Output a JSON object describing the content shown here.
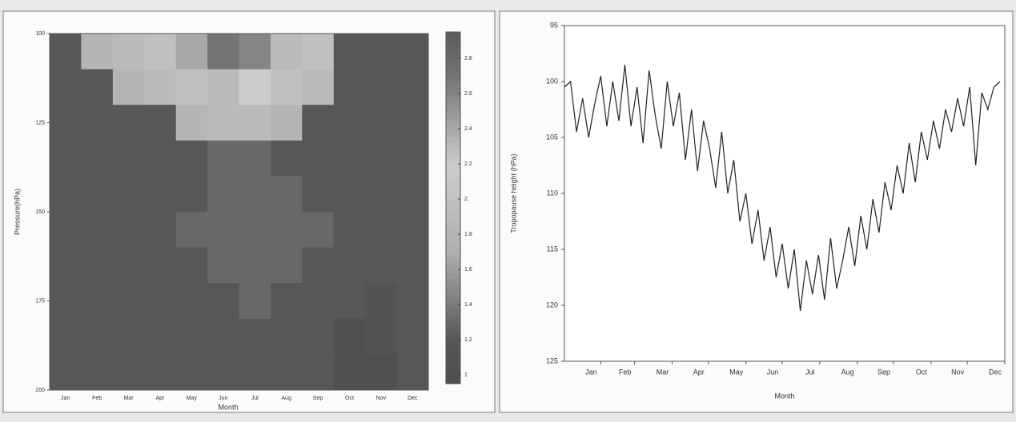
{
  "chart_data": [
    {
      "type": "heatmap",
      "categories": [
        "Jan",
        "Feb",
        "Mar",
        "Apr",
        "May",
        "Jun",
        "Jul",
        "Aug",
        "Sep",
        "Oct",
        "Nov",
        "Dec"
      ],
      "x_label": "Month",
      "y_label": "Pressure(hPa)",
      "ybins": [
        100,
        110,
        120,
        130,
        140,
        150,
        160,
        170,
        180,
        190,
        200
      ],
      "ylim": [
        200,
        100
      ],
      "yticks": [
        100,
        125,
        150,
        175,
        200
      ],
      "z": [
        [
          1.2,
          1.8,
          1.9,
          2.0,
          2.4,
          2.7,
          2.6,
          2.3,
          2.0,
          1.2,
          1.2,
          1.2
        ],
        [
          1.2,
          1.2,
          1.8,
          1.9,
          2.0,
          2.3,
          2.2,
          2.0,
          1.9,
          1.2,
          1.2,
          1.2
        ],
        [
          1.2,
          1.2,
          1.2,
          1.2,
          1.8,
          1.9,
          1.9,
          1.8,
          1.2,
          1.2,
          1.2,
          1.2
        ],
        [
          1.2,
          1.2,
          1.2,
          1.2,
          1.2,
          1.3,
          1.3,
          1.2,
          1.2,
          1.2,
          1.2,
          1.2
        ],
        [
          1.2,
          1.2,
          1.2,
          1.2,
          1.2,
          1.3,
          1.3,
          1.3,
          1.2,
          1.2,
          1.2,
          1.2
        ],
        [
          1.2,
          1.2,
          1.2,
          1.2,
          1.3,
          1.3,
          1.3,
          1.3,
          1.3,
          1.2,
          1.2,
          1.2
        ],
        [
          1.2,
          1.2,
          1.2,
          1.2,
          1.2,
          1.3,
          1.3,
          1.3,
          1.2,
          1.2,
          1.2,
          1.2
        ],
        [
          1.2,
          1.2,
          1.2,
          1.2,
          1.2,
          1.2,
          1.3,
          1.2,
          1.2,
          1.2,
          1.1,
          1.2
        ],
        [
          1.2,
          1.2,
          1.2,
          1.2,
          1.2,
          1.2,
          1.2,
          1.2,
          1.2,
          1.0,
          1.1,
          1.2
        ],
        [
          1.2,
          1.2,
          1.2,
          1.2,
          1.2,
          1.2,
          1.2,
          1.2,
          1.2,
          1.0,
          1.0,
          1.2
        ]
      ],
      "clim": [
        0.95,
        2.95
      ],
      "colorbar_ticks": [
        1,
        1.2,
        1.4,
        1.6,
        1.8,
        2,
        2.2,
        2.4,
        2.6,
        2.8
      ]
    },
    {
      "type": "line",
      "x_label": "Month",
      "y_label": "Tropopause height (hPa)",
      "color": "#222222",
      "x": [
        1,
        6,
        11,
        16,
        21,
        26,
        31,
        36,
        41,
        46,
        51,
        56,
        61,
        66,
        71,
        76,
        81,
        86,
        91,
        96,
        101,
        106,
        111,
        116,
        121,
        126,
        131,
        136,
        141,
        146,
        151,
        156,
        161,
        166,
        171,
        176,
        181,
        186,
        191,
        196,
        201,
        206,
        211,
        216,
        221,
        226,
        231,
        236,
        241,
        246,
        251,
        256,
        261,
        266,
        271,
        276,
        281,
        286,
        291,
        296,
        301,
        306,
        311,
        316,
        321,
        326,
        331,
        336,
        341,
        346,
        351,
        356,
        361
      ],
      "values": [
        100.5,
        100,
        104.5,
        101.5,
        105,
        102,
        99.5,
        104,
        100,
        103.5,
        98.5,
        104,
        100.5,
        105.5,
        99,
        103,
        106,
        100,
        104,
        101,
        107,
        102.5,
        108,
        103.5,
        106,
        109.5,
        104.5,
        110,
        107,
        112.5,
        110,
        114.5,
        111.5,
        116,
        113,
        117.5,
        114.5,
        118.5,
        115,
        120.5,
        116,
        119,
        115.5,
        119.5,
        114,
        118.5,
        116,
        113,
        116.5,
        112,
        115,
        110.5,
        113.5,
        109,
        111.5,
        107.5,
        110,
        105.5,
        109,
        104.5,
        107,
        103.5,
        106,
        102.5,
        104.5,
        101.5,
        104,
        100.5,
        107.5,
        101,
        102.5,
        100.5,
        100
      ],
      "xlim": [
        1,
        365
      ],
      "xticks": [
        {
          "value": 31,
          "label": "Jan"
        },
        {
          "value": 59,
          "label": "Feb"
        },
        {
          "value": 90,
          "label": "Mar"
        },
        {
          "value": 120,
          "label": "Apr"
        },
        {
          "value": 151,
          "label": "May"
        },
        {
          "value": 181,
          "label": "Jun"
        },
        {
          "value": 212,
          "label": "Jul"
        },
        {
          "value": 243,
          "label": "Aug"
        },
        {
          "value": 273,
          "label": "Sep"
        },
        {
          "value": 304,
          "label": "Oct"
        },
        {
          "value": 334,
          "label": "Nov"
        },
        {
          "value": 365,
          "label": "Dec"
        }
      ],
      "ylim": [
        125,
        95
      ],
      "yticks": [
        95,
        100,
        105,
        110,
        115,
        120,
        125
      ]
    }
  ]
}
